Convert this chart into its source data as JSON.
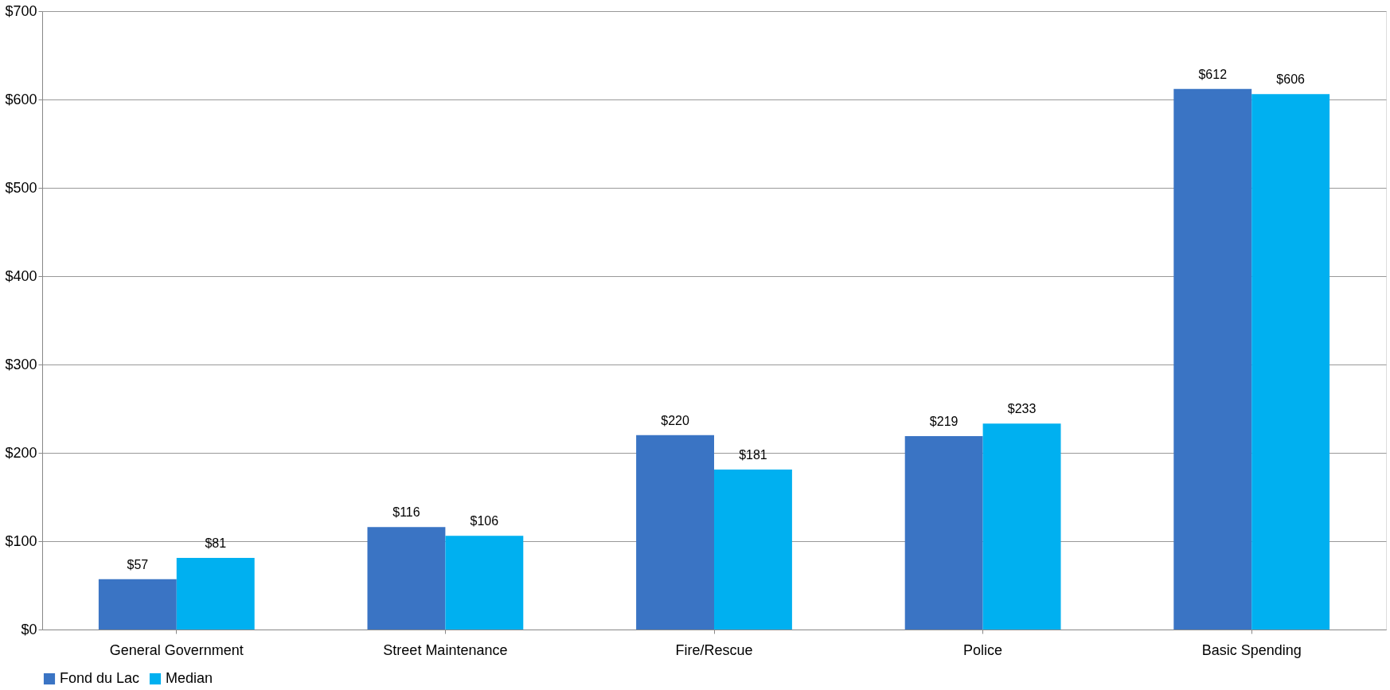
{
  "chart_data": {
    "type": "bar",
    "categories": [
      "General Government",
      "Street Maintenance",
      "Fire/Rescue",
      "Police",
      "Basic Spending"
    ],
    "series": [
      {
        "name": "Fond du Lac",
        "color": "#3a74c4",
        "values": [
          57,
          116,
          220,
          219,
          612
        ],
        "value_labels": [
          "$57",
          "$116",
          "$220",
          "$219",
          "$612"
        ]
      },
      {
        "name": "Median",
        "color": "#00b0f0",
        "values": [
          81,
          106,
          181,
          233,
          606
        ],
        "value_labels": [
          "$81",
          "$106",
          "$181",
          "$233",
          "$606"
        ]
      }
    ],
    "ylim": [
      0,
      700
    ],
    "yticks": [
      {
        "value": 0,
        "label": "$0"
      },
      {
        "value": 100,
        "label": "$100"
      },
      {
        "value": 200,
        "label": "$200"
      },
      {
        "value": 300,
        "label": "$300"
      },
      {
        "value": 400,
        "label": "$400"
      },
      {
        "value": 500,
        "label": "$500"
      },
      {
        "value": 600,
        "label": "$600"
      },
      {
        "value": 700,
        "label": "$700"
      }
    ],
    "grid": "y",
    "legend": "bottom"
  }
}
